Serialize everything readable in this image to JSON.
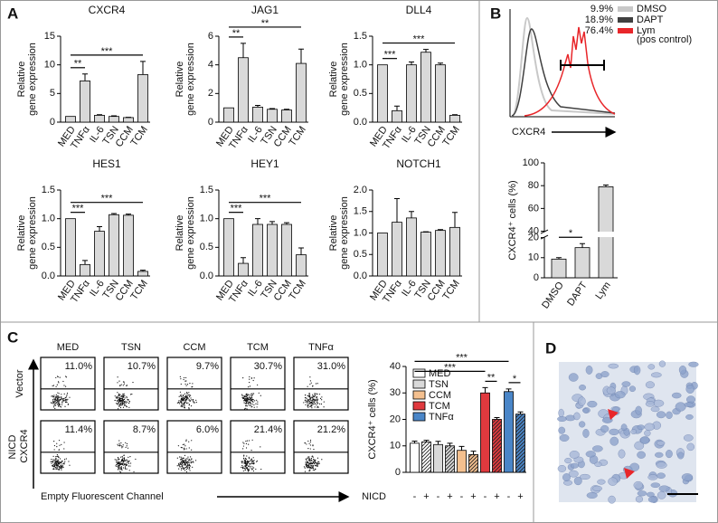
{
  "panel_labels": [
    "A",
    "B",
    "C",
    "D"
  ],
  "chart_data": [
    {
      "type": "bar",
      "title": "CXCR4",
      "categories": [
        "MED",
        "TNFα",
        "IL-6",
        "TSN",
        "CCM",
        "TCM"
      ],
      "values": [
        1,
        7.2,
        1.2,
        1.0,
        0.8,
        8.3
      ],
      "errors": [
        null,
        1.2,
        0.1,
        0.1,
        0.05,
        2.3
      ],
      "color": "#d9d9d9",
      "ylim": [
        0,
        15
      ],
      "yticks": [
        0,
        5,
        10,
        15
      ],
      "ylabel": [
        "Relative",
        "gene expression"
      ],
      "annotations": [
        {
          "label": "**",
          "between": [
            "MED",
            "TNFα"
          ]
        },
        {
          "label": "***",
          "between": [
            "MED",
            "TCM"
          ]
        }
      ]
    },
    {
      "type": "bar",
      "title": "JAG1",
      "categories": [
        "MED",
        "TNFα",
        "IL-6",
        "TSN",
        "CCM",
        "TCM"
      ],
      "values": [
        1,
        4.5,
        1.05,
        0.9,
        0.85,
        4.1
      ],
      "errors": [
        null,
        1.0,
        0.12,
        0.05,
        0.05,
        1.0
      ],
      "color": "#d9d9d9",
      "ylim": [
        0,
        6
      ],
      "yticks": [
        0,
        2,
        4,
        6
      ],
      "ylabel": [
        "Relative",
        "gene expression"
      ],
      "annotations": [
        {
          "label": "**",
          "between": [
            "MED",
            "TNFα"
          ]
        },
        {
          "label": "**",
          "between": [
            "MED",
            "TCM"
          ]
        }
      ]
    },
    {
      "type": "bar",
      "title": "DLL4",
      "categories": [
        "MED",
        "TNFα",
        "IL-6",
        "TSN",
        "CCM",
        "TCM"
      ],
      "values": [
        1.0,
        0.2,
        1.0,
        1.22,
        1.0,
        0.12
      ],
      "errors": [
        null,
        0.08,
        0.05,
        0.05,
        0.03,
        0.01
      ],
      "color": "#d9d9d9",
      "ylim": [
        0,
        1.5
      ],
      "yticks": [
        {
          "value": 0,
          "label": "0.0"
        },
        0.5,
        {
          "value": 1,
          "label": "1.0"
        },
        1.5
      ],
      "ylabel": [
        "Relative",
        "gene expression"
      ],
      "annotations": [
        {
          "label": "***",
          "between": [
            "MED",
            "TNFα"
          ]
        },
        {
          "label": "***",
          "between": [
            "MED",
            "TCM"
          ]
        }
      ]
    },
    {
      "type": "bar",
      "title": "HES1",
      "categories": [
        "MED",
        "TNFα",
        "IL-6",
        "TSN",
        "CCM",
        "TCM"
      ],
      "values": [
        1.0,
        0.2,
        0.78,
        1.07,
        1.06,
        0.08
      ],
      "errors": [
        null,
        0.07,
        0.08,
        0.02,
        0.02,
        0.02
      ],
      "color": "#d9d9d9",
      "ylim": [
        0,
        1.5
      ],
      "yticks": [
        {
          "value": 0,
          "label": "0.0"
        },
        0.5,
        {
          "value": 1,
          "label": "1.0"
        },
        1.5
      ],
      "ylabel": [
        "Relative",
        "gene expression"
      ],
      "annotations": [
        {
          "label": "***",
          "between": [
            "MED",
            "TNFα"
          ]
        },
        {
          "label": "***",
          "between": [
            "MED",
            "TCM"
          ]
        }
      ]
    },
    {
      "type": "bar",
      "title": "HEY1",
      "categories": [
        "MED",
        "TNFα",
        "IL-6",
        "TSN",
        "CCM",
        "TCM"
      ],
      "values": [
        1.0,
        0.22,
        0.9,
        0.9,
        0.9,
        0.37
      ],
      "errors": [
        null,
        0.1,
        0.1,
        0.05,
        0.03,
        0.12
      ],
      "color": "#d9d9d9",
      "ylim": [
        0,
        1.5
      ],
      "yticks": [
        {
          "value": 0,
          "label": "0.0"
        },
        0.5,
        {
          "value": 1,
          "label": "1.0"
        },
        1.5
      ],
      "ylabel": [
        "Relative",
        "gene expression"
      ],
      "annotations": [
        {
          "label": "***",
          "between": [
            "MED",
            "TNFα"
          ]
        },
        {
          "label": "***",
          "between": [
            "MED",
            "TCM"
          ]
        }
      ]
    },
    {
      "type": "bar",
      "title": "NOTCH1",
      "categories": [
        "MED",
        "TNFα",
        "IL-6",
        "TSN",
        "CCM",
        "TCM"
      ],
      "values": [
        1.0,
        1.25,
        1.35,
        1.02,
        1.06,
        1.13
      ],
      "errors": [
        null,
        0.55,
        0.15,
        0.01,
        0.02,
        0.35
      ],
      "color": "#d9d9d9",
      "ylim": [
        0,
        2
      ],
      "yticks": [
        {
          "value": 0,
          "label": "0.0"
        },
        0.5,
        {
          "value": 1,
          "label": "1.0"
        },
        1.5,
        {
          "value": 2,
          "label": "2.0"
        }
      ],
      "ylabel": [
        "Relative",
        "gene expression"
      ],
      "annotations": []
    },
    {
      "type": "bar",
      "categories": [
        "DMSO",
        "DAPT",
        "Lym"
      ],
      "values": [
        9.3,
        15,
        79
      ],
      "errors": [
        0.7,
        2,
        1.5
      ],
      "color": "#d9d9d9",
      "ylim": [
        0,
        100
      ],
      "ybreak": [
        20,
        40
      ],
      "yticks": [
        0,
        10,
        20,
        40,
        60,
        80,
        100
      ],
      "ylabel": [
        "CXCR4⁺ cells (%)"
      ],
      "annotations": [
        {
          "label": "*",
          "between": [
            "DMSO",
            "DAPT"
          ]
        }
      ]
    },
    {
      "type": "grouped_bar",
      "categories": [
        "-",
        "+"
      ],
      "hatched": [
        false,
        true
      ],
      "xlabel": "NICD",
      "ylabel": [
        "CXCR4⁺ cells (%)"
      ],
      "ylim": [
        0,
        40
      ],
      "yticks": [
        0,
        10,
        20,
        30,
        40
      ],
      "series": [
        {
          "name": "MED",
          "color": "#ffffff",
          "values": [
            11,
            11.5
          ],
          "errors": [
            0.8,
            0.6
          ]
        },
        {
          "name": "TSN",
          "color": "#d9d9d9",
          "values": [
            10.5,
            10
          ],
          "errors": [
            1.2,
            1
          ]
        },
        {
          "name": "CCM",
          "color": "#f4c08f",
          "values": [
            8.3,
            6.7
          ],
          "errors": [
            1.5,
            1.3
          ]
        },
        {
          "name": "TCM",
          "color": "#e0393e",
          "values": [
            30,
            20
          ],
          "errors": [
            2,
            0.7
          ]
        },
        {
          "name": "TNFα",
          "color": "#4a86c8",
          "values": [
            30.5,
            22
          ],
          "errors": [
            1,
            0.8
          ]
        }
      ],
      "annotations": [
        {
          "label": "**",
          "between": [
            [
              "TCM",
              "-"
            ],
            [
              "TCM",
              "+"
            ]
          ]
        },
        {
          "label": "*",
          "between": [
            [
              "TNFα",
              "-"
            ],
            [
              "TNFα",
              "+"
            ]
          ]
        },
        {
          "label": "***",
          "between": [
            [
              "MED",
              "-"
            ],
            [
              "TCM",
              "-"
            ]
          ]
        },
        {
          "label": "***",
          "between": [
            [
              "MED",
              "-"
            ],
            [
              "TNFα",
              "-"
            ]
          ]
        }
      ]
    }
  ],
  "flow_histogram": {
    "xlabel": "CXCR4",
    "legend": [
      {
        "name": "DMSO",
        "color": "#c8c8c8"
      },
      {
        "name": "DAPT",
        "color": "#404040"
      },
      {
        "name": "Lym",
        "color": "#e8262a",
        "note": "(pos control)"
      }
    ],
    "percentages": [
      "9.9%",
      "18.9%",
      "76.4%"
    ]
  },
  "dot_plots": {
    "columns": [
      "MED",
      "TSN",
      "CCM",
      "TCM",
      "TNFα"
    ],
    "rows": [
      "Vector",
      "NICD"
    ],
    "ylabel": "CXCR4",
    "xlabel": "Empty Fluorescent Channel",
    "percentages": [
      [
        "11.0%",
        "10.7%",
        "9.7%",
        "30.7%",
        "31.0%"
      ],
      [
        "11.4%",
        "8.7%",
        "6.0%",
        "21.4%",
        "21.2%"
      ]
    ]
  }
}
